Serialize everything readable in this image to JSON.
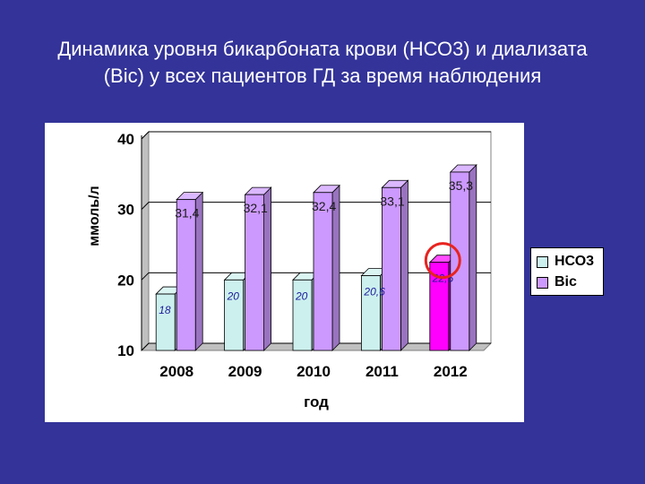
{
  "slide": {
    "title_line1": "Динамика уровня бикарбоната крови (НСО3) и диализата",
    "title_line2": "(Bic) у всех пациентов ГД за время наблюдения"
  },
  "colors": {
    "background": "#333399",
    "hco3": "#ccf0ee",
    "bic": "#cc99ff",
    "highlight_bar": "#ff00ff",
    "highlight_ring": "#e8231f"
  },
  "chart_data": {
    "type": "bar",
    "style": "3d-clustered",
    "xlabel": "год",
    "ylabel": "ммоль/л",
    "ylim": [
      10,
      40
    ],
    "yticks": [
      "10",
      "20",
      "30",
      "40"
    ],
    "gridlines": true,
    "legend_position": "right",
    "categories": [
      "2008",
      "2009",
      "2010",
      "2011",
      "2012"
    ],
    "series": [
      {
        "name": "НСО3",
        "values": [
          18,
          20,
          20,
          20.6,
          22.5
        ],
        "labels": [
          "18",
          "20",
          "20",
          "20,6",
          "22,5"
        ]
      },
      {
        "name": "Bic",
        "values": [
          31.4,
          32.1,
          32.4,
          33.1,
          35.3
        ],
        "labels": [
          "31,4",
          "32,1",
          "32,4",
          "33,1",
          "35,3"
        ]
      }
    ],
    "highlighted_point": {
      "series": "НСО3",
      "category": "2012"
    }
  }
}
